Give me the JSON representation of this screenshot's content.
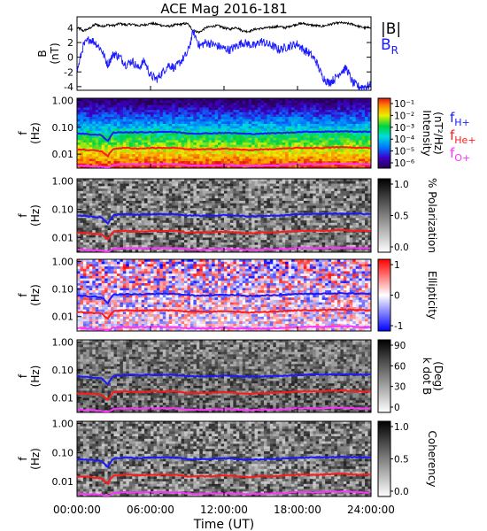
{
  "title": "ACE Mag 2016-181",
  "x_axis": {
    "label": "Time (UT)",
    "ticks": [
      "00:00:00",
      "06:00:00",
      "12:00:00",
      "18:00:00",
      "24:00:00"
    ]
  },
  "legend": {
    "b_total": "|B|",
    "b_r_main": "B",
    "b_r_sub": "R",
    "f_h_main": "f",
    "f_h_sub": "H+",
    "f_he_main": "f",
    "f_he_sub": "He+",
    "f_o_main": "f",
    "f_o_sub": "O+"
  },
  "colors": {
    "b_total": "#000000",
    "b_r": "#1a1aff",
    "f_h": "#1a1aff",
    "f_he": "#ff1a1a",
    "f_o": "#ff33ff"
  },
  "chart_data": [
    {
      "type": "line",
      "panel": "field",
      "ylabel_main": "B",
      "ylabel_unit": "(nT)",
      "xlim_hours": [
        0,
        24
      ],
      "ylim": [
        -4.5,
        5.5
      ],
      "yticks": [
        "4",
        "2",
        "0",
        "-2",
        "-4"
      ],
      "series": [
        {
          "name": "|B|",
          "x_hours": [
            0,
            0.5,
            1,
            1.5,
            2,
            2.5,
            3,
            3.5,
            4,
            4.5,
            5,
            5.5,
            6,
            6.5,
            7,
            7.5,
            8,
            8.5,
            9,
            9.5,
            10,
            10.5,
            11,
            11.5,
            12,
            12.5,
            13,
            13.5,
            14,
            14.5,
            15,
            15.5,
            16,
            16.5,
            17,
            17.5,
            18,
            18.5,
            19,
            19.5,
            20,
            20.5,
            21,
            21.5,
            22,
            22.5,
            23,
            23.5,
            24
          ],
          "values": [
            4.0,
            3.6,
            3.9,
            4.5,
            4.2,
            4.4,
            4.3,
            4.6,
            4.4,
            4.5,
            4.3,
            4.4,
            4.6,
            4.5,
            4.3,
            4.2,
            4.4,
            4.5,
            4.6,
            3.6,
            3.4,
            4.0,
            4.2,
            4.3,
            4.0,
            3.8,
            4.1,
            3.6,
            3.5,
            3.8,
            3.9,
            4.0,
            4.1,
            4.2,
            4.0,
            4.3,
            4.5,
            4.6,
            4.4,
            4.3,
            4.2,
            4.4,
            4.6,
            4.7,
            4.6,
            4.5,
            4.2,
            4.0,
            4.1
          ]
        },
        {
          "name": "B_R",
          "x_hours": [
            0,
            0.5,
            1,
            1.5,
            2,
            2.5,
            3,
            3.5,
            4,
            4.5,
            5,
            5.5,
            6,
            6.5,
            7,
            7.5,
            8,
            8.5,
            9,
            9.5,
            10,
            10.5,
            11,
            11.5,
            12,
            12.5,
            13,
            13.5,
            14,
            14.5,
            15,
            15.5,
            16,
            16.5,
            17,
            17.5,
            18,
            18.5,
            19,
            19.5,
            20,
            20.5,
            21,
            21.5,
            22,
            22.5,
            23,
            23.5,
            24
          ],
          "values": [
            -2.0,
            1.5,
            2.5,
            2.0,
            1.0,
            -1.0,
            0.5,
            0.0,
            -1.0,
            -0.5,
            -1.5,
            -0.5,
            -2.5,
            -3.0,
            -2.0,
            -1.0,
            -1.5,
            -0.5,
            0.5,
            3.5,
            1.5,
            2.0,
            1.8,
            1.5,
            1.2,
            1.0,
            1.5,
            2.0,
            1.8,
            1.5,
            2.2,
            1.8,
            1.5,
            1.0,
            1.3,
            1.6,
            1.8,
            1.0,
            0.5,
            -0.5,
            -2.5,
            -3.5,
            -3.0,
            -2.0,
            -1.5,
            -3.5,
            -4.0,
            -4.0,
            -3.8
          ]
        }
      ]
    },
    {
      "type": "heatmap",
      "panel": "intensity",
      "ylabel_main": "f",
      "ylabel_unit": "(Hz)",
      "yscale": "log",
      "ylim": [
        0.003,
        1.2
      ],
      "yticks": [
        "1.00",
        "0.10",
        "0.01"
      ],
      "colorbar": {
        "label_lines": [
          "Intensity",
          "(nT²/Hz)"
        ],
        "scale": "log",
        "range": [
          1e-06,
          0.1
        ],
        "ticks": [
          "10⁻¹",
          "10⁻²",
          "10⁻³",
          "10⁻⁴",
          "10⁻⁵",
          "10⁻⁶"
        ],
        "colormap": "rainbow"
      }
    },
    {
      "type": "heatmap",
      "panel": "polarization",
      "ylabel_main": "f",
      "ylabel_unit": "(Hz)",
      "yscale": "log",
      "ylim": [
        0.003,
        1.2
      ],
      "yticks": [
        "1.00",
        "0.10",
        "0.01"
      ],
      "colorbar": {
        "label_lines": [
          "% Polarization"
        ],
        "range": [
          0,
          1
        ],
        "ticks": [
          "1.0",
          "0.5",
          "0.0"
        ],
        "colormap": "gray"
      }
    },
    {
      "type": "heatmap",
      "panel": "ellipticity",
      "ylabel_main": "f",
      "ylabel_unit": "(Hz)",
      "yscale": "log",
      "ylim": [
        0.003,
        1.2
      ],
      "yticks": [
        "1.00",
        "0.10",
        "0.01"
      ],
      "colorbar": {
        "label_lines": [
          "Ellipticity"
        ],
        "range": [
          -1,
          1
        ],
        "ticks": [
          "1",
          "0",
          "-1"
        ],
        "colormap": "blue-white-red"
      }
    },
    {
      "type": "heatmap",
      "panel": "kdotb",
      "ylabel_main": "f",
      "ylabel_unit": "(Hz)",
      "yscale": "log",
      "ylim": [
        0.003,
        1.2
      ],
      "yticks": [
        "1.00",
        "0.10",
        "0.01"
      ],
      "colorbar": {
        "label_lines": [
          "k dot B",
          "(Deg)"
        ],
        "range": [
          0,
          90
        ],
        "ticks": [
          "90",
          "60",
          "30",
          "0"
        ],
        "colormap": "gray"
      }
    },
    {
      "type": "heatmap",
      "panel": "coherency",
      "ylabel_main": "f",
      "ylabel_unit": "(Hz)",
      "yscale": "log",
      "ylim": [
        0.003,
        1.2
      ],
      "yticks": [
        "1.00",
        "0.10",
        "0.01"
      ],
      "colorbar": {
        "label_lines": [
          "Coherency"
        ],
        "range": [
          0,
          1
        ],
        "ticks": [
          "1.0",
          "0.5",
          "0.0"
        ],
        "colormap": "gray"
      }
    }
  ],
  "gyro_lines": {
    "x_hours": [
      0,
      1,
      2,
      2.5,
      3,
      4,
      5,
      6,
      7,
      8,
      9,
      10,
      11,
      12,
      13,
      14,
      15,
      16,
      17,
      18,
      19,
      20,
      21,
      22,
      23,
      24
    ],
    "f_h_hz": [
      0.06,
      0.055,
      0.05,
      0.03,
      0.062,
      0.066,
      0.064,
      0.066,
      0.068,
      0.066,
      0.06,
      0.058,
      0.06,
      0.062,
      0.06,
      0.056,
      0.058,
      0.06,
      0.062,
      0.066,
      0.068,
      0.068,
      0.07,
      0.07,
      0.068,
      0.068
    ],
    "f_he_hz": [
      0.015,
      0.014,
      0.013,
      0.008,
      0.016,
      0.017,
      0.016,
      0.017,
      0.017,
      0.017,
      0.015,
      0.015,
      0.015,
      0.016,
      0.015,
      0.014,
      0.015,
      0.015,
      0.016,
      0.017,
      0.017,
      0.017,
      0.018,
      0.018,
      0.017,
      0.017
    ],
    "f_o_hz": [
      0.0038,
      0.0036,
      0.0034,
      0.003,
      0.004,
      0.0042,
      0.0041,
      0.0042,
      0.0042,
      0.0042,
      0.0038,
      0.0037,
      0.0038,
      0.0039,
      0.0038,
      0.0036,
      0.0037,
      0.0038,
      0.0039,
      0.0042,
      0.0042,
      0.0042,
      0.0044,
      0.0044,
      0.0042,
      0.0042
    ]
  }
}
